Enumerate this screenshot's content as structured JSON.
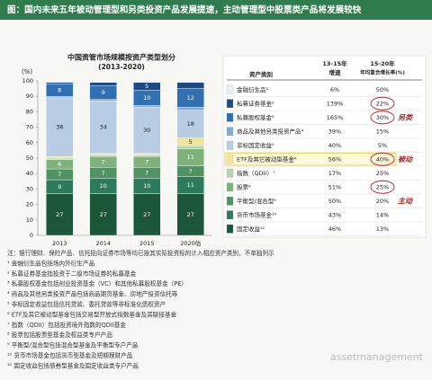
{
  "header": {
    "title": "图：国内未来五年被动管理型和另类投资产品发展提速，主动管理型中股票类产品将发展较快"
  },
  "chart_data": {
    "type": "stacked-bar",
    "title": "中国资管市场规模按资产类型划分",
    "subtitle": "(2013-2020)",
    "y_unit": "(%)",
    "categories": [
      "2013",
      "2014",
      "2015",
      "2020估"
    ],
    "ylim": [
      0,
      100
    ],
    "yticks": [
      0,
      10,
      20,
      30,
      40,
      50,
      60,
      70,
      80,
      90,
      100
    ],
    "series": [
      {
        "name": "金融衍生品¹",
        "color": "#e9eef1",
        "values": [
          1,
          1,
          1,
          1
        ]
      },
      {
        "name": "私募证券基金²",
        "color": "#1d4a86",
        "values": [
          1,
          2,
          5,
          4
        ]
      },
      {
        "name": "私募股权基金³",
        "color": "#3170b0",
        "values": [
          8,
          9,
          10,
          12
        ]
      },
      {
        "name": "商品及其他另类投资产品⁴",
        "color": "#86abd2",
        "values": [
          1,
          1,
          1,
          2
        ]
      },
      {
        "name": "非标固定收益⁵",
        "color": "#b8cde3",
        "values": [
          38,
          34,
          30,
          18
        ]
      },
      {
        "name": "ETF及其它被动型基金⁶",
        "color": "#f2e49a",
        "values": [
          1,
          1,
          1,
          5
        ]
      },
      {
        "name": "指数（QDII）⁷",
        "color": "#b7d3a8",
        "values": [
          1,
          1,
          1,
          2
        ]
      },
      {
        "name": "股票⁸",
        "color": "#7db37a",
        "values": [
          6,
          7,
          7,
          11
        ]
      },
      {
        "name": "平衡型/混合型⁹",
        "color": "#4f9363",
        "values": [
          7,
          7,
          7,
          7
        ]
      },
      {
        "name": "货币市场基金¹⁰",
        "color": "#2d7a5c",
        "values": [
          9,
          10,
          10,
          11
        ]
      },
      {
        "name": "固定收益¹¹",
        "color": "#1b553a",
        "values": [
          27,
          27,
          27,
          27
        ]
      }
    ],
    "table": {
      "headers": [
        "资产类别",
        "13-15年",
        "增速",
        "15-20年",
        "年均复合增长率(%)"
      ],
      "growth_13_15": [
        "6%",
        "139%",
        "165%",
        "39%",
        "40%",
        "56%",
        "17%",
        "51%",
        "50%",
        "43%",
        "46%"
      ],
      "cagr_15_20": [
        "50%",
        "22%",
        "30%",
        "15%",
        "5%",
        "40%",
        "25%",
        "25%",
        "20%",
        "14%",
        "13%"
      ]
    },
    "annotations": [
      {
        "text": "另类",
        "row": 2
      },
      {
        "text": "被动",
        "row": 5
      },
      {
        "text": "主动",
        "row": 8
      }
    ]
  },
  "notes": [
    "注：银行理财、保险产品、信托投向证券市场等均已按其实际投资标的计入相应资产类别，不单独列示",
    "¹ 金融衍生品包括场内外衍生产品",
    "² 私募证券基金指投资于二级市场证券的私募基金",
    "³ 私募股权基金包括创业投资基金（VC）和其他私募股权基金（PE）",
    "⁴ 商品及其他另类投资产品包括商品期货基金、房地产投资信托等",
    "⁵ 非标固定收益包括信托贷款、委托贷款等非标准化债权资产",
    "⁶ ETF及其它被动型基金包括交易型开放式指数基金及其联接基金",
    "⁷ 指数（QDII）包括投资境外指数的QDII基金",
    "⁸ 股票包括股票型基金及权益类专户产品",
    "⁹ 平衡型/混合型包括混合型基金及平衡型专户产品",
    "¹⁰ 货币市场基金包括货币型基金及短期理财产品",
    "¹¹ 固定收益包括债券型基金及固定收益类专户产品"
  ],
  "watermark": "assetmanagement"
}
